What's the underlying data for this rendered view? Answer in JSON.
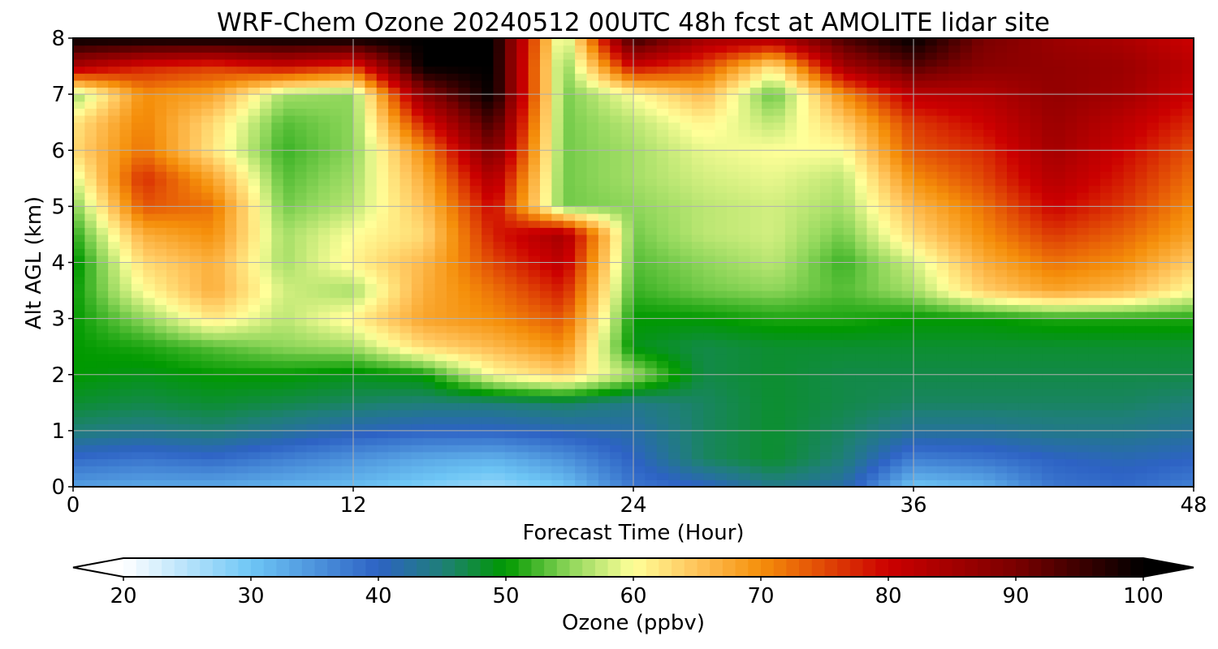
{
  "chart_data": {
    "type": "heatmap",
    "title": "WRF-Chem Ozone  20240512 00UTC 48h fcst at AMOLITE lidar site",
    "xlabel": "Forecast Time (Hour)",
    "ylabel": "Alt AGL (km)",
    "xlim": [
      0,
      48
    ],
    "ylim": [
      0,
      8
    ],
    "x_ticks": [
      "0",
      "12",
      "24",
      "36",
      "48"
    ],
    "y_ticks": [
      "0",
      "1",
      "2",
      "3",
      "4",
      "5",
      "6",
      "7",
      "8"
    ],
    "grid": true,
    "x": [
      0,
      3,
      6,
      9,
      12,
      15,
      18,
      21,
      24,
      27,
      30,
      33,
      36,
      39,
      42,
      45,
      48
    ],
    "y": [
      0,
      0.5,
      1,
      1.5,
      2,
      2.5,
      3,
      3.5,
      4,
      4.5,
      5,
      5.5,
      6,
      6.5,
      7,
      7.5,
      8
    ],
    "z": [
      [
        34,
        33,
        33,
        32,
        31,
        29,
        27,
        30,
        38,
        40,
        44,
        42,
        30,
        32,
        38,
        39,
        37
      ],
      [
        39,
        38,
        39,
        37,
        35,
        33,
        32,
        35,
        40,
        46,
        48,
        45,
        37,
        38,
        40,
        41,
        40
      ],
      [
        45,
        44,
        45,
        43,
        41,
        40,
        40,
        41,
        42,
        46,
        48,
        46,
        43,
        43,
        44,
        44,
        43
      ],
      [
        48,
        47,
        48,
        47,
        46,
        45,
        45,
        46,
        44,
        46,
        48,
        47,
        46,
        46,
        46,
        46,
        45
      ],
      [
        50,
        49,
        50,
        50,
        49,
        50,
        60,
        64,
        56,
        47,
        48,
        47,
        47,
        47,
        47,
        47,
        47
      ],
      [
        50,
        51,
        53,
        55,
        56,
        63,
        66,
        70,
        49,
        47,
        48,
        48,
        48,
        48,
        48,
        48,
        48
      ],
      [
        50,
        55,
        62,
        57,
        61,
        68,
        70,
        74,
        50,
        50,
        51,
        51,
        50,
        50,
        51,
        51,
        51
      ],
      [
        50,
        60,
        67,
        58,
        56,
        67,
        72,
        78,
        52,
        54,
        55,
        53,
        56,
        64,
        68,
        66,
        60
      ],
      [
        49,
        63,
        67,
        56,
        61,
        66,
        75,
        82,
        53,
        55,
        57,
        52,
        58,
        67,
        72,
        70,
        64
      ],
      [
        51,
        67,
        70,
        56,
        60,
        63,
        78,
        85,
        54,
        57,
        58,
        54,
        63,
        70,
        76,
        73,
        68
      ],
      [
        54,
        74,
        72,
        54,
        57,
        65,
        80,
        54,
        55,
        57,
        58,
        56,
        66,
        72,
        80,
        76,
        70
      ],
      [
        58,
        77,
        68,
        53,
        56,
        67,
        84,
        54,
        56,
        58,
        59,
        57,
        70,
        75,
        83,
        78,
        72
      ],
      [
        63,
        72,
        62,
        52,
        55,
        70,
        90,
        54,
        56,
        59,
        60,
        60,
        74,
        77,
        85,
        80,
        74
      ],
      [
        62,
        71,
        63,
        53,
        55,
        78,
        95,
        54,
        57,
        61,
        57,
        64,
        76,
        80,
        86,
        82,
        77
      ],
      [
        55,
        70,
        68,
        56,
        55,
        88,
        100,
        54,
        60,
        66,
        53,
        70,
        82,
        83,
        87,
        85,
        80
      ],
      [
        84,
        78,
        76,
        80,
        76,
        100,
        100,
        54,
        80,
        75,
        62,
        85,
        93,
        88,
        87,
        86,
        82
      ],
      [
        100,
        100,
        100,
        100,
        100,
        100,
        100,
        56,
        96,
        85,
        84,
        94,
        100,
        90,
        86,
        84,
        80
      ]
    ],
    "colorbar": {
      "label": "Ozone  (ppbv)",
      "min": 20,
      "max": 100,
      "ticks": [
        "20",
        "30",
        "40",
        "50",
        "60",
        "70",
        "80",
        "90",
        "100"
      ],
      "extend": "both",
      "stops": [
        {
          "v": 20,
          "c": "#ffffff"
        },
        {
          "v": 30,
          "c": "#6ec6f5"
        },
        {
          "v": 40,
          "c": "#2d62c4"
        },
        {
          "v": 45,
          "c": "#1f7f78"
        },
        {
          "v": 50,
          "c": "#009900"
        },
        {
          "v": 55,
          "c": "#8ed65a"
        },
        {
          "v": 60,
          "c": "#ffff99"
        },
        {
          "v": 65,
          "c": "#ffc35a"
        },
        {
          "v": 70,
          "c": "#f58f0a"
        },
        {
          "v": 80,
          "c": "#cc0000"
        },
        {
          "v": 90,
          "c": "#7a0000"
        },
        {
          "v": 100,
          "c": "#000000"
        }
      ]
    }
  }
}
